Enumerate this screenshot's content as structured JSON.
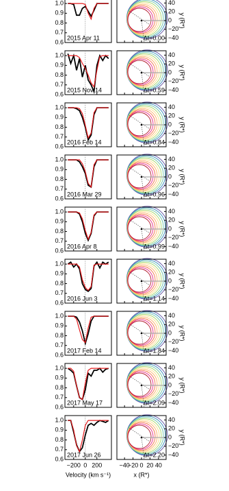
{
  "chart_data": [
    {
      "type": "line",
      "xlabel": "Velocity (km s⁻¹)",
      "x": [
        -300,
        -250,
        -200,
        -150,
        -100,
        -50,
        0,
        50,
        100,
        150,
        200,
        250,
        300,
        350,
        400
      ],
      "xlim": [
        -350,
        450
      ],
      "xticks": [
        {
          "value": -200,
          "label": "−200"
        },
        0,
        200
      ],
      "ylim": [
        0.6,
        1.05
      ],
      "yticks": [
        {
          "value": 1,
          "label": "1.0"
        },
        0.9,
        0.8,
        0.7,
        0.6
      ],
      "observed_color": "#000000",
      "model_color": "#e41a1c",
      "panels": [
        {
          "label": "2015 Apr 11",
          "observed": [
            1,
            1,
            0.99,
            0.88,
            0.88,
            0.95,
            0.97,
            0.92,
            0.87,
            0.93,
            1,
            1,
            1,
            1,
            1
          ],
          "model": [
            1,
            1,
            1,
            1,
            1,
            1,
            0.99,
            0.9,
            0.84,
            0.95,
            1,
            1,
            1,
            1,
            1
          ]
        },
        {
          "label": "2015 Nov 14",
          "observed": [
            1.02,
            0.92,
            1.0,
            0.85,
            0.97,
            0.78,
            0.9,
            0.75,
            0.7,
            0.63,
            0.9,
            1.0,
            0.95,
            1.0,
            0.97
          ],
          "model": [
            1,
            1,
            1,
            1,
            0.98,
            0.92,
            0.87,
            0.8,
            0.72,
            0.68,
            0.85,
            0.99,
            1,
            1,
            1
          ]
        },
        {
          "label": "2016 Feb 14",
          "observed": [
            1,
            1,
            1,
            0.99,
            0.97,
            0.9,
            0.8,
            0.67,
            0.72,
            0.93,
            1,
            1,
            1,
            1,
            1
          ],
          "model": [
            1,
            1,
            1,
            1,
            0.99,
            0.94,
            0.82,
            0.69,
            0.74,
            0.95,
            1,
            1,
            1,
            1,
            1
          ]
        },
        {
          "label": "2016 Mar 29",
          "observed": [
            1,
            1,
            1,
            1,
            0.98,
            0.93,
            0.86,
            0.74,
            0.72,
            0.93,
            1,
            1,
            1,
            1,
            1
          ],
          "model": [
            1,
            1,
            1,
            1,
            1,
            0.96,
            0.88,
            0.76,
            0.72,
            0.95,
            1,
            1,
            1,
            1,
            1
          ]
        },
        {
          "label": "2016 Apr 8",
          "observed": [
            1,
            1,
            1,
            1,
            0.98,
            0.9,
            0.78,
            0.71,
            0.78,
            0.96,
            1,
            1,
            1,
            1,
            1
          ],
          "model": [
            1,
            1,
            1,
            1,
            0.99,
            0.93,
            0.81,
            0.72,
            0.79,
            0.97,
            1,
            1,
            1,
            1,
            1
          ]
        },
        {
          "label": "2016 Jun 3",
          "observed": [
            1.0,
            1.02,
            0.97,
            1.0,
            0.95,
            0.8,
            0.74,
            0.72,
            0.75,
            0.98,
            1.02,
            0.96,
            1.02,
            1.0,
            1.02
          ],
          "model": [
            1,
            1,
            1,
            1,
            0.97,
            0.84,
            0.76,
            0.73,
            0.77,
            0.99,
            1,
            1,
            1,
            1,
            1
          ]
        },
        {
          "label": "2017 Feb 14",
          "observed": [
            1,
            1,
            1,
            0.99,
            0.94,
            0.85,
            0.72,
            0.82,
            0.95,
            1,
            1,
            1,
            1,
            1,
            1
          ],
          "model": [
            1,
            1,
            1,
            0.97,
            0.86,
            0.76,
            0.73,
            0.88,
            0.99,
            1,
            1,
            1,
            1,
            1,
            1
          ]
        },
        {
          "label": "2017 May 17",
          "observed": [
            1,
            0.98,
            0.95,
            0.82,
            0.7,
            0.68,
            0.78,
            0.95,
            0.92,
            0.98,
            0.98,
            1,
            0.96,
            0.99,
            1
          ],
          "model": [
            1,
            1,
            0.97,
            0.82,
            0.7,
            0.68,
            0.85,
            0.98,
            1,
            1,
            1,
            1,
            1,
            1,
            1
          ]
        },
        {
          "label": "2017 Jun 26",
          "observed": [
            1,
            1,
            0.88,
            0.75,
            0.68,
            0.72,
            0.85,
            0.95,
            0.97,
            0.95,
            0.98,
            1,
            0.99,
            0.98,
            1
          ],
          "model": [
            1,
            1,
            0.9,
            0.74,
            0.68,
            0.8,
            0.95,
            1,
            1,
            1,
            1,
            1,
            1,
            1,
            1
          ]
        }
      ]
    },
    {
      "type": "orbit",
      "xlabel": "x (R*)",
      "ylabel": "y (R*)",
      "xlim": [
        -58,
        58
      ],
      "xticks": [
        {
          "value": -40,
          "label": "−40"
        },
        {
          "value": -20,
          "label": "−20"
        },
        0,
        20,
        40
      ],
      "ylim": [
        -50,
        50
      ],
      "yticks": [
        40,
        20,
        0,
        {
          "value": -20,
          "label": "−20"
        },
        {
          "value": -40,
          "label": "−40"
        }
      ],
      "panels": [
        {
          "label": "Δt=0.00"
        },
        {
          "label": "Δt=0.59"
        },
        {
          "label": "Δt=0.84"
        },
        {
          "label": "Δt=0.96"
        },
        {
          "label": "Δt=0.99"
        },
        {
          "label": "Δt=1.14"
        },
        {
          "label": "Δt=1.84"
        },
        {
          "label": "Δt=2.09"
        },
        {
          "label": "Δt=2.20"
        }
      ]
    }
  ]
}
